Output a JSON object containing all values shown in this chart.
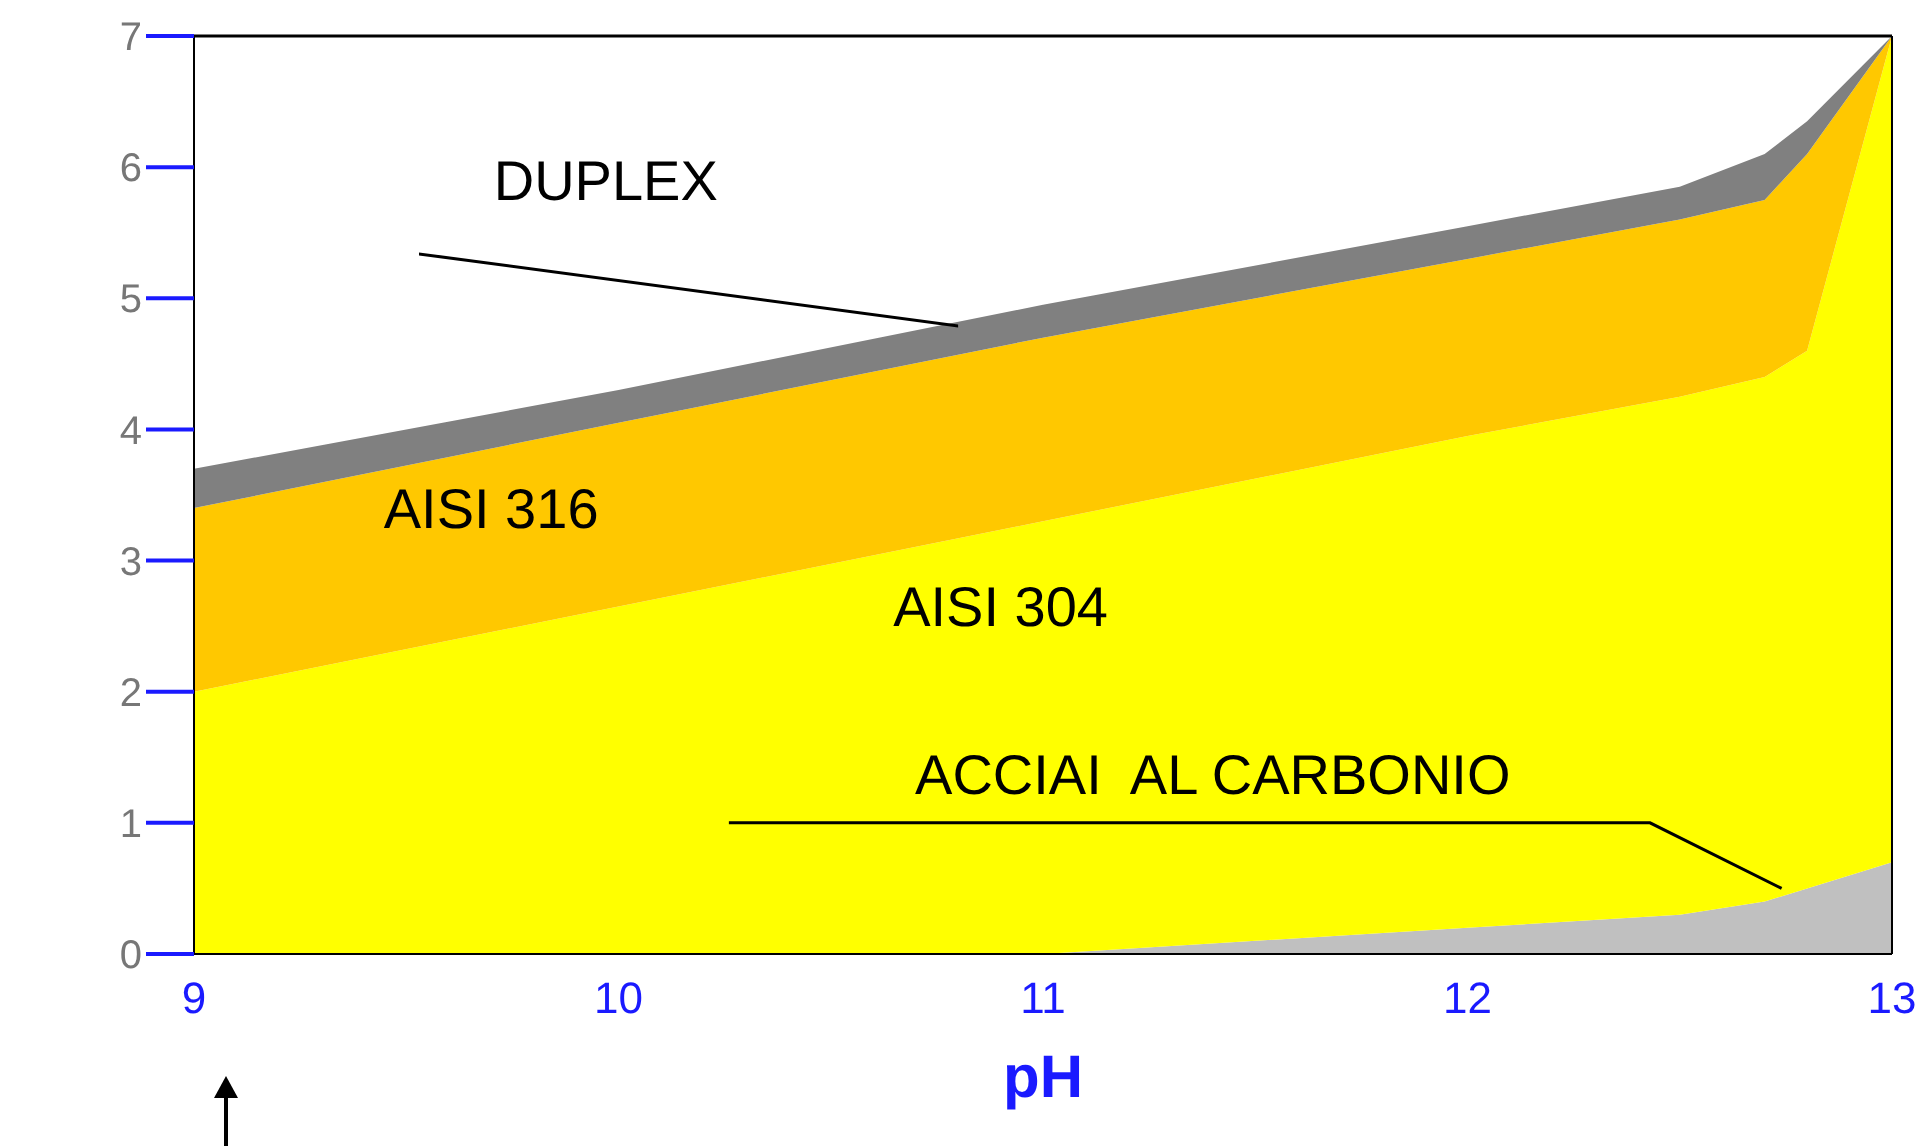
{
  "chart_data": {
    "type": "area",
    "stacked": true,
    "xlabel": "pH",
    "x": [
      9,
      10,
      11,
      12,
      12.5,
      12.7,
      12.8,
      13
    ],
    "series": [
      {
        "name": "ACCIAI  AL CARBONIO",
        "color": "#c0c0c0",
        "values": [
          0,
          0,
          0,
          0.2,
          0.3,
          0.4,
          0.5,
          0.7
        ]
      },
      {
        "name": "AISI 304",
        "color": "#ffff00",
        "values": [
          2.0,
          2.65,
          3.3,
          3.75,
          3.95,
          4.0,
          4.1,
          6.3
        ]
      },
      {
        "name": "AISI 316",
        "color": "#ffc800",
        "values": [
          1.4,
          1.4,
          1.4,
          1.35,
          1.35,
          1.35,
          1.5,
          0
        ]
      },
      {
        "name": "DUPLEX",
        "color": "#808080",
        "values": [
          0.3,
          0.25,
          0.25,
          0.25,
          0.25,
          0.35,
          0.25,
          0
        ]
      }
    ],
    "xlim": [
      9,
      13
    ],
    "xticks": [
      9,
      10,
      11,
      12,
      13
    ],
    "ylim": [
      0,
      7
    ],
    "yticks": [
      0,
      1,
      2,
      3,
      4,
      5,
      6,
      7
    ]
  }
}
